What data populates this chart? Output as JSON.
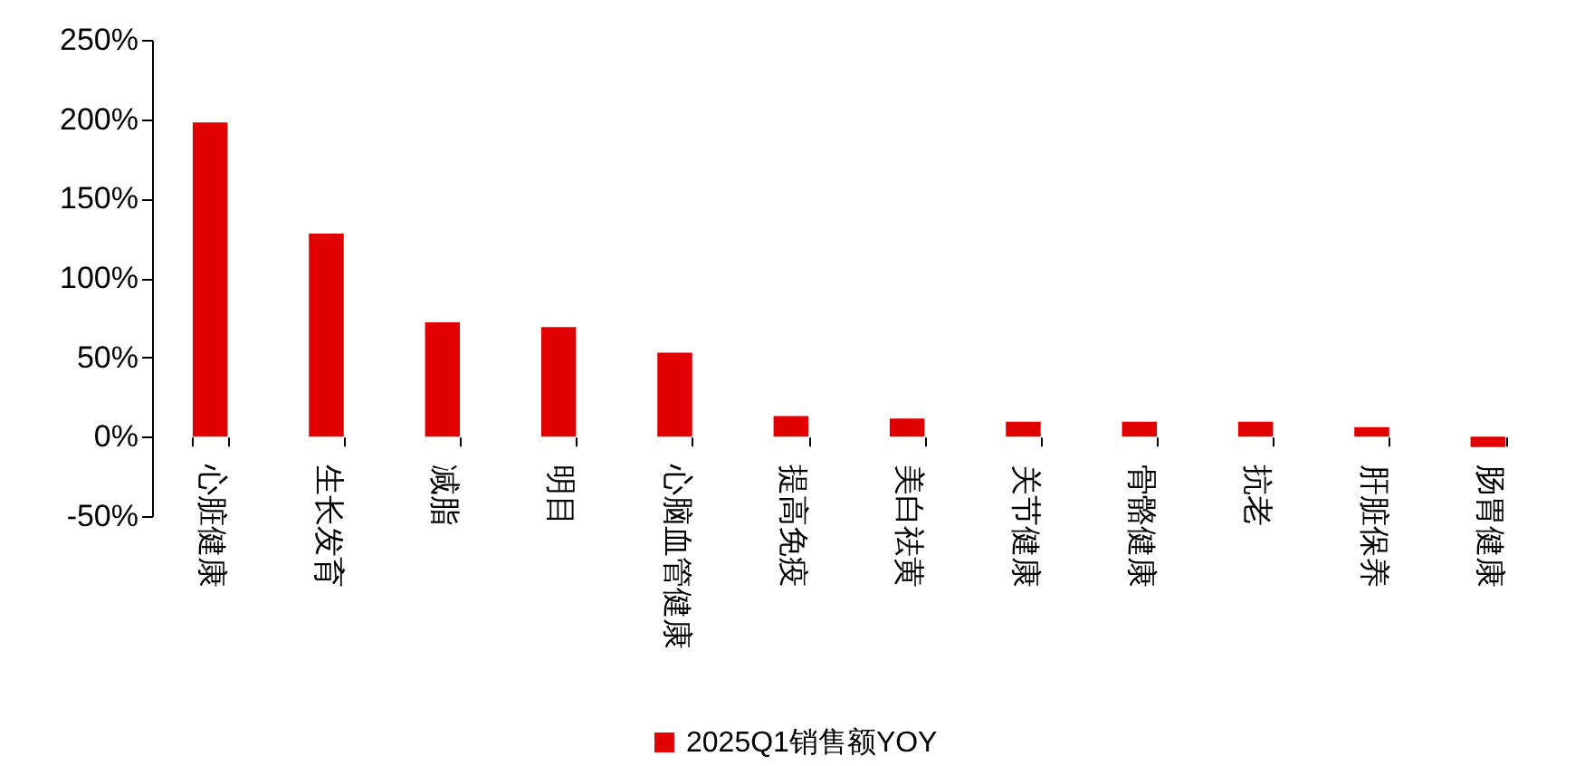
{
  "chart_data": {
    "type": "bar",
    "categories": [
      "心脏健康",
      "生长发育",
      "减脂",
      "明目",
      "心脑血管健康",
      "提高免疫",
      "美白祛黄",
      "关节健康",
      "骨骼健康",
      "抗老",
      "肝脏保养",
      "肠胃健康"
    ],
    "series": [
      {
        "name": "2025Q1销售额YOY",
        "color": "#e00000",
        "values": [
          198,
          128,
          72,
          69,
          53,
          13,
          11.5,
          9.5,
          9.5,
          9.5,
          6,
          -6.5
        ]
      }
    ],
    "ylim": [
      -50,
      250
    ],
    "yticks": [
      {
        "value": -50,
        "label": "-50%"
      },
      {
        "value": 0,
        "label": "0%"
      },
      {
        "value": 50,
        "label": "50%"
      },
      {
        "value": 100,
        "label": "100%"
      },
      {
        "value": 150,
        "label": "150%"
      },
      {
        "value": 200,
        "label": "200%"
      },
      {
        "value": 250,
        "label": "250%"
      }
    ],
    "legend": "bottom"
  }
}
